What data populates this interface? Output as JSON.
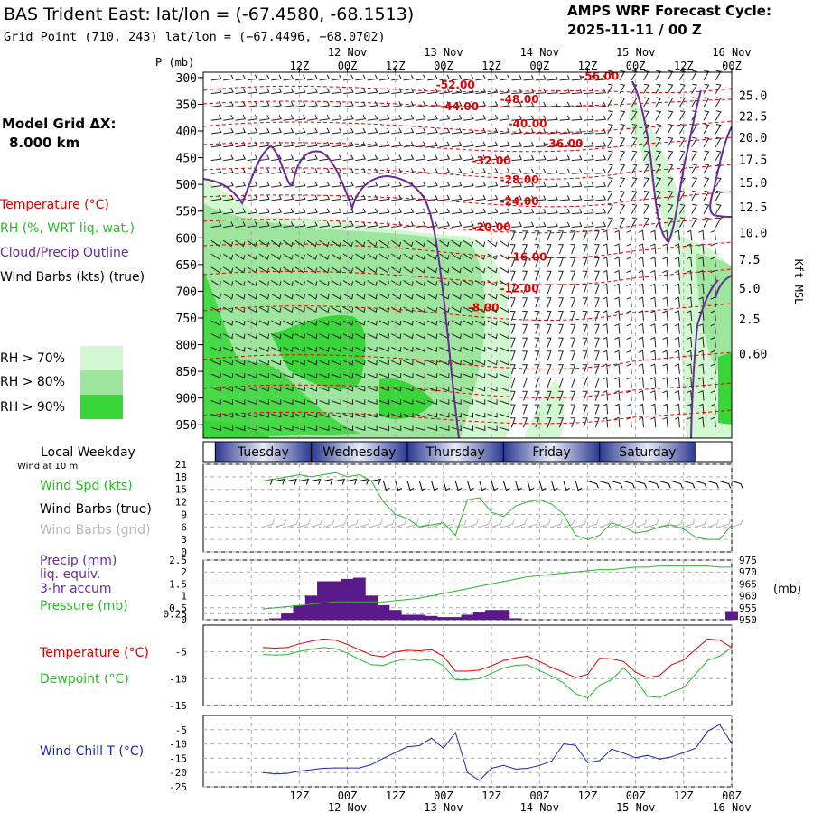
{
  "header": {
    "title": "BAS Trident East:  lat/lon = (-67.4580, -68.1513)",
    "grid_point": "Grid Point (710, 243) lat/lon = (−67.4496, −68.0702)",
    "forecast_label": "AMPS WRF Forecast Cycle:",
    "forecast_cycle": "2025-11-11 / 00  Z",
    "model_grid_label": "Model Grid ΔX:",
    "model_grid_value": "8.000 km"
  },
  "legend": {
    "temperature": "Temperature (°C)",
    "rh": "RH (%, WRT liq. wat.)",
    "cloud": "Cloud/Precip Outline",
    "wind_barbs": "Wind Barbs (kts) (true)",
    "rh70": "RH > 70%",
    "rh80": "RH > 80%",
    "rh90": "RH > 90%"
  },
  "colors": {
    "temperature": "#e00000",
    "rh70": "#d2f8d2",
    "rh80": "#9ee69e",
    "rh90": "#38d638",
    "cloud": "#6a2a9a",
    "green_line": "#2ab82a",
    "wind_chill": "#1a2ab0",
    "weekday_bar": "#3c48a0"
  },
  "chart_data": [
    {
      "type": "heatmap",
      "name": "time-height cross section",
      "ylabel_left": "P (mb)",
      "ylabel_right": "Kft MSL",
      "pressure_ticks": [
        300,
        350,
        400,
        450,
        500,
        550,
        600,
        650,
        700,
        750,
        800,
        850,
        900,
        950
      ],
      "height_ticks": [
        "25.0",
        "22.5",
        "20.0",
        "17.5",
        "15.0",
        "12.5",
        "10.0",
        "7.5",
        "5.0",
        "2.5",
        "0.60"
      ],
      "height_tick_pressures": [
        333,
        372,
        412,
        453,
        496,
        542,
        590,
        640,
        694,
        752,
        817
      ],
      "top_time_ticks": [
        "12Z",
        "00Z",
        "12Z",
        "00Z",
        "12Z",
        "00Z",
        "12Z",
        "00Z",
        "12Z",
        "00Z"
      ],
      "top_date_labels": [
        "12 Nov",
        "13 Nov",
        "14 Nov",
        "15 Nov",
        "16 Nov"
      ],
      "temperature_contours": [
        {
          "label": "-56.00",
          "hour": 84,
          "p": 298
        },
        {
          "label": "-52.00",
          "hour": 48,
          "p": 314
        },
        {
          "label": "-48.00",
          "hour": 64,
          "p": 341
        },
        {
          "label": "-44.00",
          "hour": 49,
          "p": 354
        },
        {
          "label": "-40.00",
          "hour": 66,
          "p": 386
        },
        {
          "label": "-36.00",
          "hour": 75,
          "p": 424
        },
        {
          "label": "-32.00",
          "hour": 57,
          "p": 456
        },
        {
          "label": "-28.00",
          "hour": 64,
          "p": 491
        },
        {
          "label": "-24.00",
          "hour": 64,
          "p": 532
        },
        {
          "label": "-20.00",
          "hour": 57,
          "p": 580
        },
        {
          "label": "-16.00",
          "hour": 66,
          "p": 636
        },
        {
          "label": "-12.00",
          "hour": 64,
          "p": 695
        },
        {
          "label": "-8.00",
          "hour": 55,
          "p": 731
        }
      ]
    },
    {
      "type": "line",
      "name": "wind speed",
      "ylabel": "Wind Spd (kts)",
      "ylim": [
        0,
        21
      ],
      "yticks": [
        0,
        3,
        6,
        9,
        12,
        15,
        18,
        21
      ],
      "x": [
        0,
        3,
        6,
        9,
        12,
        15,
        18,
        21,
        24,
        27,
        30,
        33,
        36,
        39,
        42,
        45,
        48,
        51,
        54,
        57,
        60,
        63,
        66,
        69,
        72,
        75,
        78,
        81,
        84,
        87,
        90,
        93,
        96,
        99,
        102,
        105,
        108,
        111,
        114,
        117
      ],
      "values": [
        17,
        17.5,
        18,
        18.5,
        18,
        18.5,
        19,
        18,
        18.5,
        17,
        12,
        9,
        8,
        6,
        6.5,
        7,
        4,
        12.5,
        13,
        9.5,
        8.5,
        11,
        12,
        12.5,
        11.5,
        9,
        4,
        3,
        4,
        7,
        6,
        4.5,
        5,
        6,
        6.5,
        5.5,
        3.5,
        3,
        3,
        6.5
      ],
      "labels": [
        "Wind Spd (kts)",
        "Wind Barbs (true)",
        "Wind Barbs (grid)"
      ]
    },
    {
      "type": "bar",
      "name": "precipitation and pressure",
      "ylabel": "Precip (mm)",
      "ylabel2": "Pressure (mb)",
      "ylim": [
        0,
        2.5
      ],
      "yticks": [
        0.0,
        0.25,
        0.5,
        1.0,
        1.5,
        2.0,
        2.5
      ],
      "y2lim": [
        950,
        975
      ],
      "y2ticks": [
        950,
        955,
        960,
        965,
        970,
        975
      ],
      "y2label": "(mb)",
      "x": [
        0,
        3,
        6,
        9,
        12,
        15,
        18,
        21,
        24,
        27,
        30,
        33,
        36,
        39,
        42,
        45,
        48,
        51,
        54,
        57,
        60,
        63,
        66,
        69,
        72,
        75,
        78,
        81,
        84,
        87,
        90,
        93,
        96,
        99,
        102,
        105,
        108,
        111,
        114,
        117
      ],
      "precip_values": [
        0,
        0.05,
        0.25,
        0.6,
        1.0,
        1.6,
        1.6,
        1.7,
        1.75,
        1.0,
        0.6,
        0.4,
        0.2,
        0.2,
        0.15,
        0.1,
        0.1,
        0.2,
        0.3,
        0.4,
        0.4,
        0.05,
        0,
        0,
        0,
        0,
        0,
        0,
        0,
        0,
        0,
        0,
        0,
        0,
        0,
        0,
        0,
        0,
        0,
        0.35
      ],
      "pressure_values": [
        954.5,
        955,
        955.5,
        956,
        956.5,
        957,
        957.5,
        957.5,
        957.5,
        957.5,
        957.5,
        958,
        958.5,
        959,
        960,
        961,
        962,
        963,
        964,
        965,
        966,
        967,
        968,
        968.5,
        969,
        969.5,
        970,
        970.5,
        971,
        971,
        971.5,
        972,
        972,
        972.5,
        972.5,
        972.5,
        972.5,
        972.5,
        972,
        972
      ],
      "labels": [
        "Precip (mm)",
        "liq. equiv.",
        "3-hr accum",
        "Pressure (mb)"
      ]
    },
    {
      "type": "line",
      "name": "temperature and dewpoint",
      "ylim": [
        -15,
        0
      ],
      "yticks": [
        -5,
        -10,
        -15
      ],
      "x": [
        0,
        3,
        6,
        9,
        12,
        15,
        18,
        21,
        24,
        27,
        30,
        33,
        36,
        39,
        42,
        45,
        48,
        51,
        54,
        57,
        60,
        63,
        66,
        69,
        72,
        75,
        78,
        81,
        84,
        87,
        90,
        93,
        96,
        99,
        102,
        105,
        108,
        111,
        114,
        117
      ],
      "series": [
        {
          "name": "Temperature (°C)",
          "values": [
            -4.2,
            -4.3,
            -4.2,
            -3.5,
            -3,
            -2.6,
            -2.8,
            -3.6,
            -4.6,
            -5.6,
            -5.9,
            -5,
            -4.7,
            -4.8,
            -4.6,
            -5.8,
            -8.6,
            -8.6,
            -8.4,
            -7.6,
            -6.6,
            -6.1,
            -5.8,
            -6.8,
            -7.9,
            -8.8,
            -9.8,
            -9.2,
            -6.2,
            -6.3,
            -6.8,
            -8.8,
            -9.8,
            -9.4,
            -7.4,
            -6.5,
            -4.5,
            -2.6,
            -2.8,
            -4.2
          ]
        },
        {
          "name": "Dewpoint (°C)",
          "values": [
            -5.5,
            -5.6,
            -5.5,
            -4.9,
            -4.5,
            -4.2,
            -4.4,
            -5.2,
            -6.4,
            -7.4,
            -7.5,
            -6.7,
            -6.3,
            -6.6,
            -6.4,
            -7.6,
            -10.2,
            -10.2,
            -10,
            -9,
            -8,
            -7.5,
            -7.4,
            -8.5,
            -9.5,
            -10.8,
            -12.8,
            -13.6,
            -11.2,
            -10.2,
            -8,
            -10.2,
            -13.3,
            -13.5,
            -12.5,
            -11.7,
            -9.1,
            -6.6,
            -5.8,
            -4.2
          ]
        }
      ],
      "labels": [
        "Temperature (°C)",
        "Dewpoint (°C)"
      ]
    },
    {
      "type": "line",
      "name": "wind chill",
      "ylim": [
        -25,
        0
      ],
      "yticks": [
        -5,
        -10,
        -15,
        -20,
        -25
      ],
      "x": [
        0,
        3,
        6,
        9,
        12,
        15,
        18,
        21,
        24,
        27,
        30,
        33,
        36,
        39,
        42,
        45,
        48,
        51,
        54,
        57,
        60,
        63,
        66,
        69,
        72,
        75,
        78,
        81,
        84,
        87,
        90,
        93,
        96,
        99,
        102,
        105,
        108,
        111,
        114,
        117
      ],
      "values": [
        -20,
        -20.5,
        -20.3,
        -19.5,
        -19,
        -18.5,
        -18.4,
        -18.4,
        -18.4,
        -17.2,
        -15,
        -13,
        -11,
        -10.6,
        -8,
        -11.5,
        -6,
        -20,
        -22.8,
        -18.5,
        -17.5,
        -18.8,
        -18.5,
        -17.5,
        -16,
        -10,
        -10.5,
        -16.5,
        -15.8,
        -11.8,
        -13.2,
        -14.8,
        -14,
        -15.3,
        -14.5,
        -13,
        -11.5,
        -5.5,
        -3.2,
        -9.8
      ],
      "labels": [
        "Wind Chill T (°C)"
      ]
    }
  ],
  "weekday": {
    "label": "Local Weekday",
    "sub_label": "Wind at 10 m",
    "days": [
      "Tuesday",
      "Wednesday",
      "Thursday",
      "Friday",
      "Saturday"
    ]
  },
  "bottom_axis": {
    "time_ticks": [
      "12Z",
      "00Z",
      "12Z",
      "00Z",
      "12Z",
      "00Z",
      "12Z",
      "00Z",
      "12Z",
      "00Z"
    ],
    "date_labels": [
      "12 Nov",
      "13 Nov",
      "14 Nov",
      "15 Nov",
      "16 Nov"
    ]
  }
}
